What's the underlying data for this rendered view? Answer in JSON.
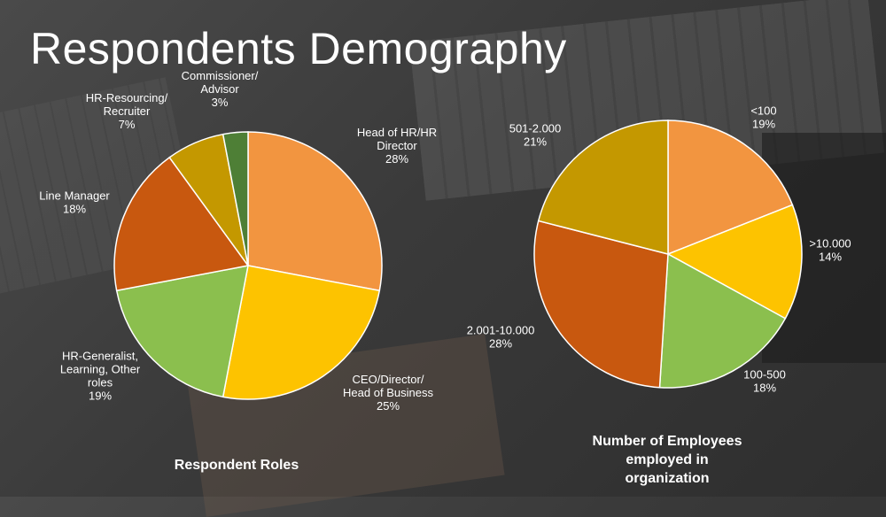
{
  "title": "Respondents Demography",
  "chart_data": [
    {
      "type": "pie",
      "title": "Respondent Roles",
      "slices": [
        {
          "label_lines": [
            "Head of HR/HR",
            "Director"
          ],
          "pct_label": "28%",
          "value": 28,
          "color": "#f29540"
        },
        {
          "label_lines": [
            "CEO/Director/",
            "Head of Business"
          ],
          "pct_label": "25%",
          "value": 25,
          "color": "#fdc300"
        },
        {
          "label_lines": [
            "HR-Generalist,",
            "Learning, Other",
            "roles"
          ],
          "pct_label": "19%",
          "value": 19,
          "color": "#8bbf4e"
        },
        {
          "label_lines": [
            "Line Manager"
          ],
          "pct_label": "18%",
          "value": 18,
          "color": "#c8580f"
        },
        {
          "label_lines": [
            "HR-Resourcing/",
            "Recruiter"
          ],
          "pct_label": "7%",
          "value": 7,
          "color": "#c49800"
        },
        {
          "label_lines": [
            "Commissioner/",
            "Advisor"
          ],
          "pct_label": "3%",
          "value": 3,
          "color": "#4e7f36"
        }
      ]
    },
    {
      "type": "pie",
      "title_lines": [
        "Number of Employees",
        "employed in",
        "organization"
      ],
      "slices": [
        {
          "label_lines": [
            "<100"
          ],
          "pct_label": "19%",
          "value": 19,
          "color": "#f29540"
        },
        {
          "label_lines": [
            ">10.000"
          ],
          "pct_label": "14%",
          "value": 14,
          "color": "#fdc300"
        },
        {
          "label_lines": [
            "100-500"
          ],
          "pct_label": "18%",
          "value": 18,
          "color": "#8bbf4e"
        },
        {
          "label_lines": [
            "2.001-10.000"
          ],
          "pct_label": "28%",
          "value": 28,
          "color": "#c8580f"
        },
        {
          "label_lines": [
            "501-2.000"
          ],
          "pct_label": "21%",
          "value": 21,
          "color": "#c49800"
        }
      ]
    }
  ]
}
